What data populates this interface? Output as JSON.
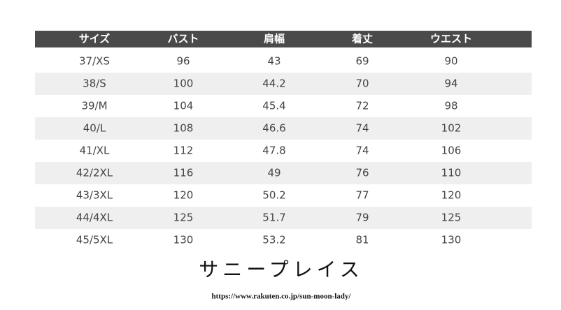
{
  "table": {
    "header": [
      "サイズ",
      "バスト",
      "肩幅",
      "着丈",
      "ウエスト"
    ],
    "rows": [
      [
        "37/XS",
        96,
        43,
        69,
        90
      ],
      [
        "38/S",
        100,
        44.2,
        70,
        94
      ],
      [
        "39/M",
        104,
        45.4,
        72,
        98
      ],
      [
        "40/L",
        108,
        46.6,
        74,
        102
      ],
      [
        "41/XL",
        112,
        47.8,
        74,
        106
      ],
      [
        "42/2XL",
        116,
        49,
        76,
        110
      ],
      [
        "43/3XL",
        120,
        50.2,
        77,
        120
      ],
      [
        "44/4XL",
        125,
        51.7,
        79,
        125
      ],
      [
        "45/5XL",
        130,
        53.2,
        81,
        130
      ]
    ]
  },
  "footer": {
    "brand": "サニープレイス",
    "url": "https://www.rakuten.co.jp/sun-moon-lady/"
  }
}
